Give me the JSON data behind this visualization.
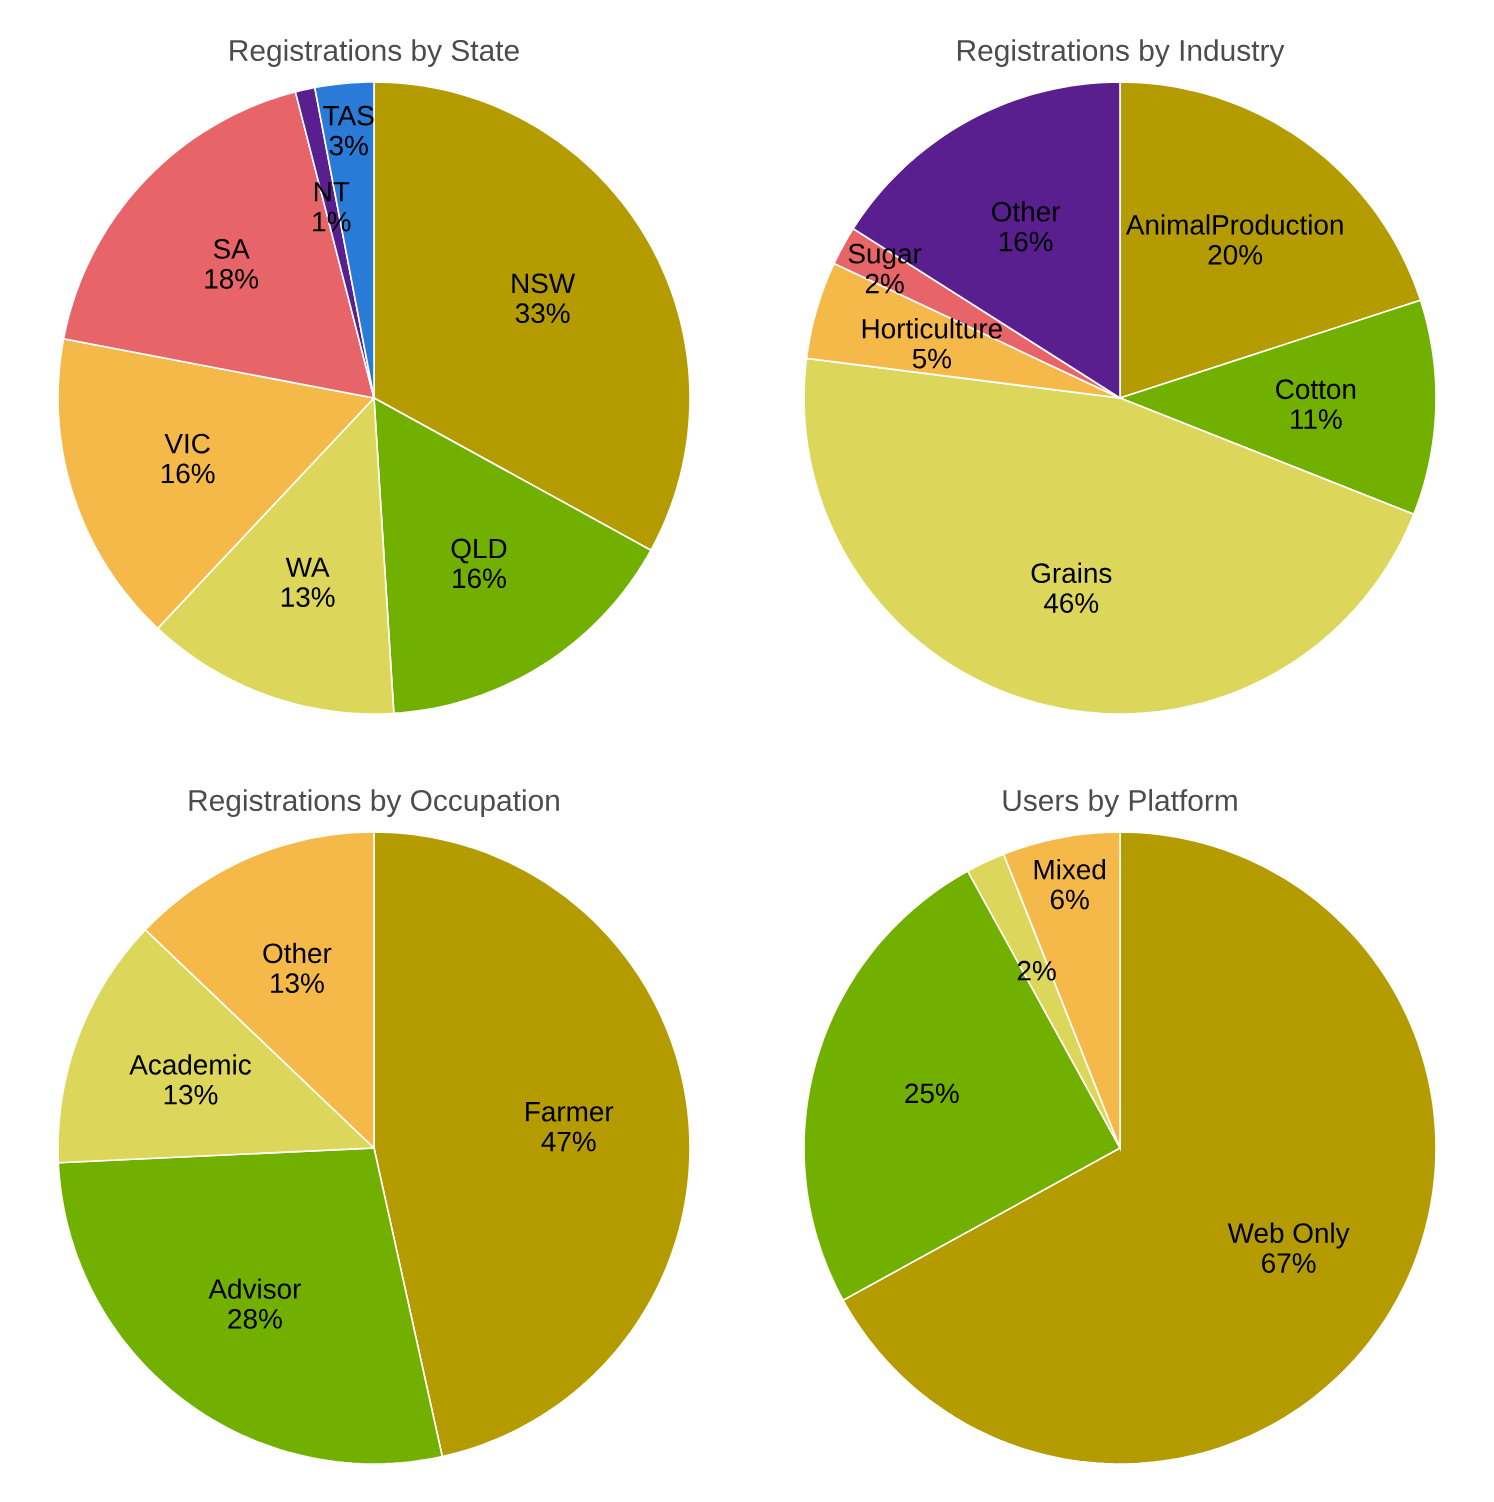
{
  "chart_data": [
    {
      "type": "pie",
      "title": "Registrations by State",
      "categories": [
        "NSW",
        "QLD",
        "WA",
        "VIC",
        "SA",
        "NT",
        "TAS"
      ],
      "values": [
        33,
        16,
        13,
        16,
        18,
        1,
        3
      ],
      "value_labels": [
        "33%",
        "16%",
        "13%",
        "16%",
        "18%",
        "1%",
        "3%"
      ],
      "colors": [
        "#b39b00",
        "#72b000",
        "#dcd75a",
        "#f5b94a",
        "#e76468",
        "#5a1f8f",
        "#2a7bd8"
      ]
    },
    {
      "type": "pie",
      "title": "Registrations by Industry",
      "categories": [
        "AnimalProduction",
        "Cotton",
        "Grains",
        "Horticulture",
        "Sugar",
        "Other"
      ],
      "values": [
        20,
        11,
        46,
        5,
        2,
        16
      ],
      "value_labels": [
        "20%",
        "11%",
        "46%",
        "5%",
        "2%",
        "16%"
      ],
      "colors": [
        "#b39b00",
        "#72b000",
        "#dcd75a",
        "#f5b94a",
        "#e76468",
        "#5a1f8f"
      ]
    },
    {
      "type": "pie",
      "title": "Registrations by Occupation",
      "categories": [
        "Farmer",
        "Advisor",
        "Academic",
        "Other"
      ],
      "values": [
        47,
        28,
        13,
        13
      ],
      "value_labels": [
        "47%",
        "28%",
        "13%",
        "13%"
      ],
      "colors": [
        "#b39b00",
        "#72b000",
        "#dcd75a",
        "#f5b94a"
      ]
    },
    {
      "type": "pie",
      "title": "Users by Platform",
      "categories": [
        "Web Only",
        null,
        null,
        "Mixed"
      ],
      "values": [
        67,
        25,
        2,
        6
      ],
      "value_labels": [
        "67%",
        "25%",
        "2%",
        "6%"
      ],
      "colors": [
        "#b39b00",
        "#72b000",
        "#dcd75a",
        "#f5b94a"
      ]
    }
  ]
}
